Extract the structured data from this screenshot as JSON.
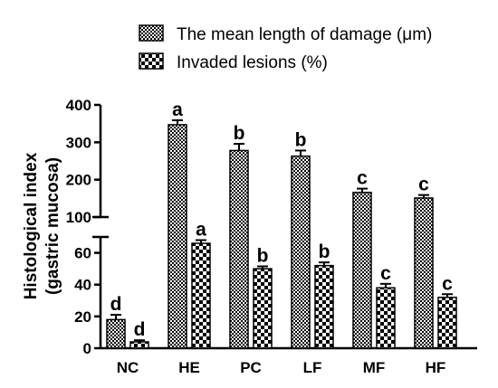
{
  "chart_data": {
    "type": "bar",
    "ylabel_lines": [
      "Histological index",
      "(gastric mucosa)"
    ],
    "categories": [
      "NC",
      "HE",
      "PC",
      "LF",
      "MF",
      "HF"
    ],
    "y_axis": "broken",
    "upper_segment": {
      "ylim": [
        100,
        400
      ],
      "ticks": [
        "100",
        "200",
        "300",
        "400"
      ]
    },
    "lower_segment": {
      "ylim": [
        0,
        70
      ],
      "ticks": [
        "0",
        "20",
        "40",
        "60"
      ]
    },
    "series": [
      {
        "name": "The mean length of damage (μm)",
        "fill": "dense-checker",
        "values": [
          18,
          347,
          278,
          263,
          166,
          151
        ],
        "errors": [
          3,
          12,
          18,
          15,
          10,
          8
        ],
        "labels": [
          "d",
          "a",
          "b",
          "b",
          "c",
          "c"
        ]
      },
      {
        "name": "Invaded lesions (%)",
        "fill": "large-checker",
        "values": [
          4,
          66,
          50,
          52,
          38,
          32
        ],
        "errors": [
          1,
          2,
          1.5,
          2,
          2.5,
          2
        ],
        "labels": [
          "d",
          "a",
          "b",
          "b",
          "c",
          "c"
        ]
      }
    ],
    "grid": false,
    "legend_position": "top-right"
  }
}
